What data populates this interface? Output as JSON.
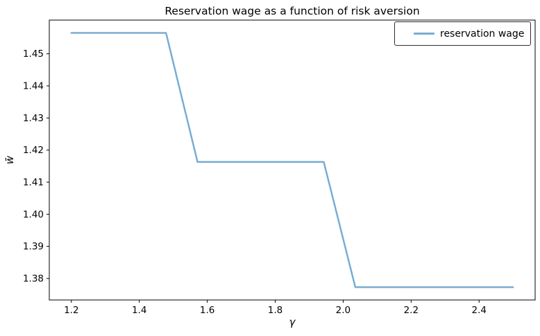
{
  "figure": {
    "background": "#ffffff",
    "spine_color": "#000000",
    "text_color": "#000000"
  },
  "chart_data": {
    "type": "line",
    "title": "Reservation wage as a function of risk aversion",
    "xlabel": "γ",
    "ylabel": "w̄",
    "grid": false,
    "legend_position": "upper right",
    "xlim": [
      1.135,
      2.565
    ],
    "ylim": [
      1.3733,
      1.4605
    ],
    "x_ticks": [
      1.2,
      1.4,
      1.6,
      1.8,
      2.0,
      2.2,
      2.4
    ],
    "x_tick_labels": [
      "1.2",
      "1.4",
      "1.6",
      "1.8",
      "2.0",
      "2.2",
      "2.4"
    ],
    "y_ticks": [
      1.38,
      1.39,
      1.4,
      1.41,
      1.42,
      1.43,
      1.44,
      1.45
    ],
    "y_tick_labels": [
      "1.38",
      "1.39",
      "1.40",
      "1.41",
      "1.42",
      "1.43",
      "1.44",
      "1.45"
    ],
    "series": [
      {
        "name": "reservation wage",
        "color": "#78add2",
        "line_width": 2.5,
        "x": [
          1.2,
          1.2929,
          1.3857,
          1.4786,
          1.5714,
          1.6643,
          1.7571,
          1.85,
          1.9429,
          2.0357,
          2.1286,
          2.2214,
          2.3143,
          2.4071,
          2.5
        ],
        "y": [
          1.4565,
          1.4565,
          1.4565,
          1.4565,
          1.4163,
          1.4163,
          1.4163,
          1.4163,
          1.4163,
          1.3773,
          1.3773,
          1.3773,
          1.3773,
          1.3773,
          1.3773
        ]
      }
    ]
  }
}
